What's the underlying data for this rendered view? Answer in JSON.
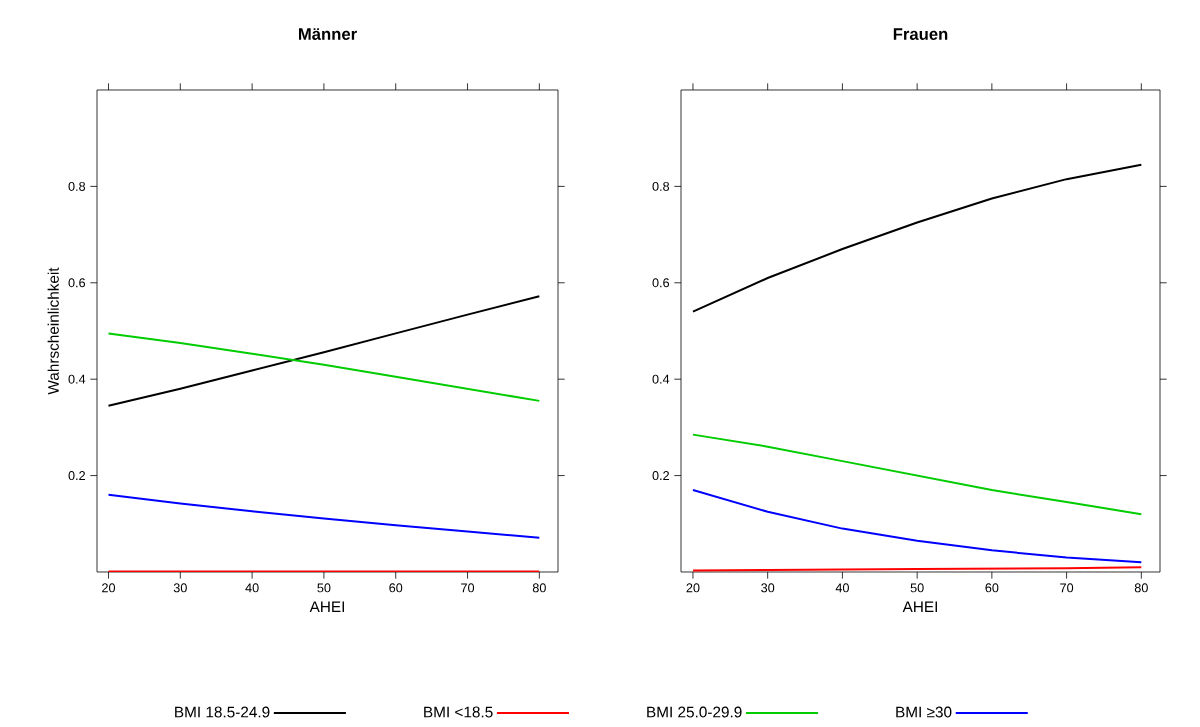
{
  "chart_data": [
    {
      "type": "line",
      "title": "Männer",
      "xlabel": "AHEI",
      "ylabel": "Wahrscheinlichkeit",
      "x": [
        20,
        30,
        40,
        50,
        60,
        70,
        80
      ],
      "xlim": [
        18.4,
        82.6
      ],
      "ylim": [
        0,
        1
      ],
      "xticks": [
        20,
        30,
        40,
        50,
        60,
        70,
        80
      ],
      "yticks": [
        0.2,
        0.4,
        0.6,
        0.8
      ],
      "legend": "bottom",
      "series": [
        {
          "name": "BMI 18.5-24.9",
          "color": "#000000",
          "values": [
            0.345,
            0.38,
            0.418,
            0.456,
            0.495,
            0.534,
            0.572
          ]
        },
        {
          "name": "BMI <18.5",
          "color": "#ff0000",
          "values": [
            0.001,
            0.001,
            0.001,
            0.001,
            0.001,
            0.001,
            0.001
          ]
        },
        {
          "name": "BMI 25.0-29.9",
          "color": "#00cc00",
          "values": [
            0.495,
            0.475,
            0.453,
            0.43,
            0.405,
            0.38,
            0.355
          ]
        },
        {
          "name": "BMI ≥30",
          "color": "#0000ff",
          "values": [
            0.16,
            0.142,
            0.126,
            0.111,
            0.097,
            0.084,
            0.071
          ]
        }
      ]
    },
    {
      "type": "line",
      "title": "Frauen",
      "xlabel": "AHEI",
      "x": [
        20,
        30,
        40,
        50,
        60,
        70,
        80
      ],
      "xlim": [
        18.4,
        82.5
      ],
      "ylim": [
        0,
        1
      ],
      "xticks": [
        20,
        30,
        40,
        50,
        60,
        70,
        80
      ],
      "yticks": [
        0.2,
        0.4,
        0.6,
        0.8
      ],
      "series": [
        {
          "color": "#000000",
          "values": [
            0.54,
            0.61,
            0.67,
            0.725,
            0.775,
            0.815,
            0.845
          ]
        },
        {
          "color": "#ff0000",
          "values": [
            0.003,
            0.004,
            0.005,
            0.006,
            0.007,
            0.008,
            0.01
          ]
        },
        {
          "color": "#00cc00",
          "values": [
            0.285,
            0.26,
            0.23,
            0.2,
            0.17,
            0.145,
            0.12
          ]
        },
        {
          "color": "#0000ff",
          "values": [
            0.17,
            0.125,
            0.09,
            0.065,
            0.045,
            0.03,
            0.02
          ]
        }
      ]
    }
  ]
}
